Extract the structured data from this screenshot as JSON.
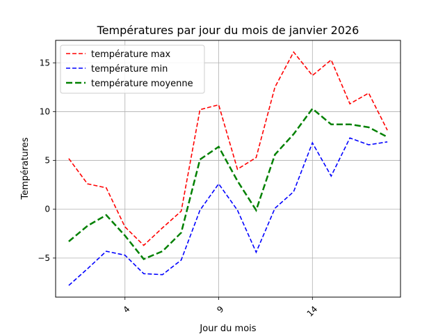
{
  "chart_data": {
    "type": "line",
    "title": "Températures par jour du mois de janvier 2026",
    "xlabel": "Jour du mois",
    "ylabel": "Températures",
    "x": [
      1,
      2,
      3,
      4,
      5,
      6,
      7,
      8,
      9,
      10,
      11,
      12,
      13,
      14,
      15,
      16,
      17,
      18
    ],
    "xlim": [
      0.3,
      18.7
    ],
    "ylim": [
      -9,
      17.3
    ],
    "xticks": [
      4,
      9,
      14
    ],
    "xtick_labels": [
      "4",
      "9",
      "14"
    ],
    "yticks": [
      -5,
      0,
      5,
      10,
      15
    ],
    "ytick_labels": [
      "−5",
      "0",
      "5",
      "10",
      "15"
    ],
    "xtick_rotation": 45,
    "grid": true,
    "legend_position": "top-left",
    "series": [
      {
        "name": "température max",
        "color": "#ff0000",
        "style": "dashed",
        "width": "thin",
        "values": [
          5.2,
          2.6,
          2.2,
          -1.8,
          -3.7,
          -1.9,
          -0.2,
          10.2,
          10.7,
          4.1,
          5.3,
          12.5,
          16.1,
          13.7,
          15.3,
          10.8,
          11.9,
          8.1
        ]
      },
      {
        "name": "température min",
        "color": "#0000ff",
        "style": "dashed",
        "width": "thin",
        "values": [
          -7.8,
          -6.1,
          -4.3,
          -4.7,
          -6.6,
          -6.7,
          -5.2,
          -0.1,
          2.6,
          -0.1,
          -4.4,
          0.1,
          1.8,
          6.8,
          3.4,
          7.3,
          6.6,
          6.9
        ]
      },
      {
        "name": "température moyenne",
        "color": "#008000",
        "style": "dashed",
        "width": "thick",
        "values": [
          -3.3,
          -1.7,
          -0.6,
          -2.7,
          -5.1,
          -4.3,
          -2.4,
          5.1,
          6.4,
          2.9,
          -0.1,
          5.6,
          7.7,
          10.3,
          8.7,
          8.7,
          8.4,
          7.4
        ]
      }
    ]
  }
}
